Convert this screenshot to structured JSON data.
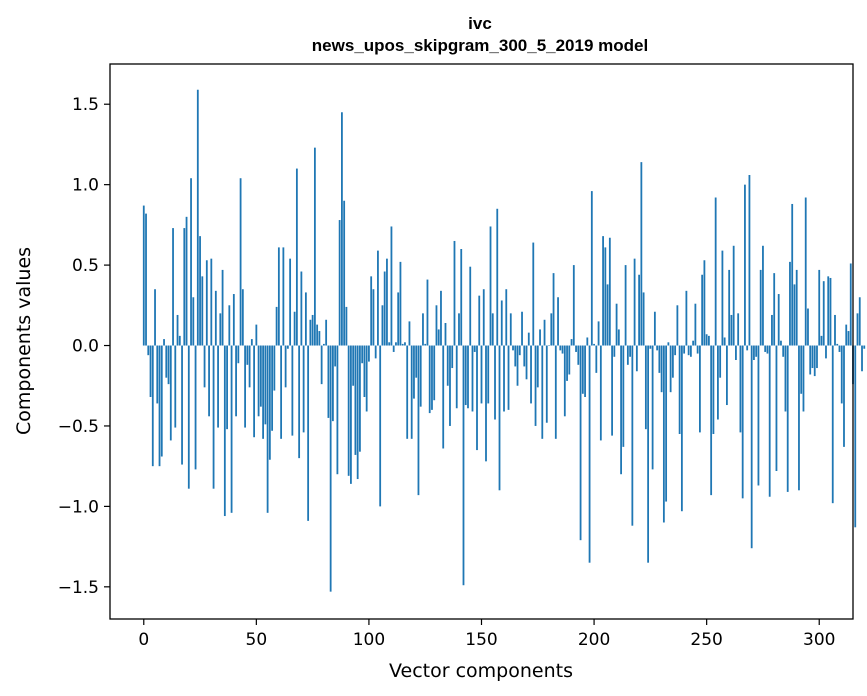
{
  "chart_data": {
    "type": "bar",
    "title_line1": "ivc",
    "title_line2": "news_upos_skipgram_300_5_2019 model",
    "xlabel": "Vector components",
    "ylabel": "Components values",
    "xlim": [
      -15,
      315
    ],
    "ylim": [
      -1.7,
      1.75
    ],
    "xticks": [
      0,
      50,
      100,
      150,
      200,
      250,
      300
    ],
    "xtick_labels": [
      "0",
      "50",
      "100",
      "150",
      "200",
      "250",
      "300"
    ],
    "yticks": [
      -1.5,
      -1.0,
      -0.5,
      0.0,
      0.5,
      1.0,
      1.5
    ],
    "ytick_labels": [
      "−1.5",
      "−1.0",
      "−0.5",
      "0.0",
      "0.5",
      "1.0",
      "1.5"
    ],
    "bar_color": "#1f77b4",
    "values": [
      0.87,
      0.82,
      -0.06,
      -0.32,
      -0.75,
      0.35,
      -0.36,
      -0.75,
      -0.69,
      0.04,
      -0.2,
      -0.24,
      -0.59,
      0.73,
      -0.51,
      0.19,
      0.06,
      -0.74,
      0.73,
      0.8,
      -0.89,
      1.04,
      0.3,
      -0.77,
      1.59,
      0.68,
      0.43,
      -0.26,
      0.53,
      -0.44,
      0.54,
      -0.89,
      0.34,
      -0.51,
      0.2,
      0.47,
      -1.06,
      -0.52,
      0.25,
      -1.04,
      0.32,
      -0.44,
      -0.11,
      1.04,
      0.35,
      -0.51,
      -0.12,
      -0.26,
      0.04,
      -0.57,
      0.13,
      -0.44,
      -0.38,
      -0.58,
      -0.49,
      -1.04,
      -0.71,
      -0.53,
      -0.28,
      0.24,
      0.61,
      -0.58,
      0.61,
      -0.26,
      -0.02,
      0.54,
      -0.56,
      0.21,
      1.1,
      -0.7,
      0.46,
      -0.54,
      0.33,
      -1.09,
      0.16,
      0.19,
      1.23,
      0.13,
      0.09,
      -0.24,
      0.01,
      0.16,
      -0.45,
      -1.53,
      -0.47,
      -0.13,
      -0.8,
      0.78,
      1.45,
      0.9,
      0.24,
      -0.81,
      -0.86,
      -0.25,
      -0.68,
      -0.83,
      -0.66,
      -0.11,
      -0.32,
      -0.41,
      -0.1,
      0.43,
      0.35,
      -0.08,
      0.59,
      -1.0,
      0.25,
      0.46,
      0.54,
      0.02,
      0.74,
      -0.04,
      0.02,
      0.33,
      0.52,
      0.01,
      0.02,
      -0.58,
      0.15,
      -0.58,
      -0.33,
      -0.2,
      -0.93,
      -0.38,
      0.2,
      0.01,
      0.41,
      -0.42,
      -0.4,
      -0.34,
      0.25,
      0.1,
      0.34,
      -0.64,
      0.14,
      -0.25,
      -0.5,
      -0.14,
      0.65,
      -0.39,
      0.2,
      0.6,
      -1.49,
      -0.37,
      -0.39,
      0.49,
      -0.41,
      -0.04,
      -0.65,
      0.31,
      -0.36,
      0.35,
      -0.72,
      -0.36,
      0.74,
      0.2,
      -0.46,
      0.85,
      -0.9,
      0.28,
      -0.41,
      0.35,
      -0.4,
      0.2,
      -0.03,
      -0.13,
      -0.25,
      -0.06,
      0.21,
      -0.13,
      -0.21,
      0.08,
      -0.36,
      0.64,
      -0.5,
      -0.26,
      0.1,
      -0.58,
      0.16,
      -0.48,
      0.0,
      0.2,
      0.45,
      -0.58,
      0.3,
      -0.03,
      -0.05,
      -0.44,
      -0.22,
      -0.18,
      0.04,
      0.5,
      -0.04,
      -0.12,
      -1.21,
      -0.3,
      -0.32,
      0.05,
      -1.35,
      0.96,
      0.01,
      -0.17,
      0.15,
      -0.59,
      0.68,
      0.61,
      0.38,
      0.67,
      -0.56,
      -0.07,
      0.26,
      0.1,
      -0.8,
      -0.63,
      0.5,
      -0.12,
      -0.07,
      -1.12,
      0.54,
      -0.16,
      0.44,
      1.14,
      0.33,
      -0.52,
      -1.35,
      -0.02,
      -0.77,
      0.21,
      -0.03,
      -0.17,
      -0.29,
      -1.1,
      -0.97,
      0.02,
      -0.29,
      -0.2,
      -0.06,
      0.25,
      -0.55,
      -1.03,
      -0.05,
      0.34,
      -0.06,
      -0.07,
      0.03,
      0.26,
      -0.05,
      -0.54,
      0.44,
      0.53,
      0.07,
      0.06,
      -0.93,
      -0.55,
      0.92,
      -0.46,
      -0.2,
      0.59,
      0.05,
      -0.37,
      0.47,
      0.19,
      0.62,
      -0.09,
      0.2,
      -0.54,
      -0.95,
      1.0,
      -0.03,
      1.06,
      -1.26,
      -0.09,
      -0.07,
      -0.87,
      0.47,
      0.62,
      -0.04,
      -0.05,
      -0.94,
      0.19,
      0.45,
      -0.78,
      0.32,
      0.03,
      -0.07,
      -0.41,
      -0.91,
      0.52,
      0.88,
      0.38,
      0.47,
      -0.9,
      -0.3,
      -0.41,
      0.92,
      0.23,
      -0.18,
      -0.14,
      -0.19,
      -0.14,
      0.47,
      0.06,
      0.4,
      -0.08,
      0.43,
      0.42,
      -0.98,
      0.19,
      0.01,
      -0.04,
      -0.36,
      -0.63,
      0.13,
      0.09,
      0.51,
      -0.24,
      -1.13,
      0.2,
      0.3,
      -0.16,
      -0.02
    ]
  }
}
